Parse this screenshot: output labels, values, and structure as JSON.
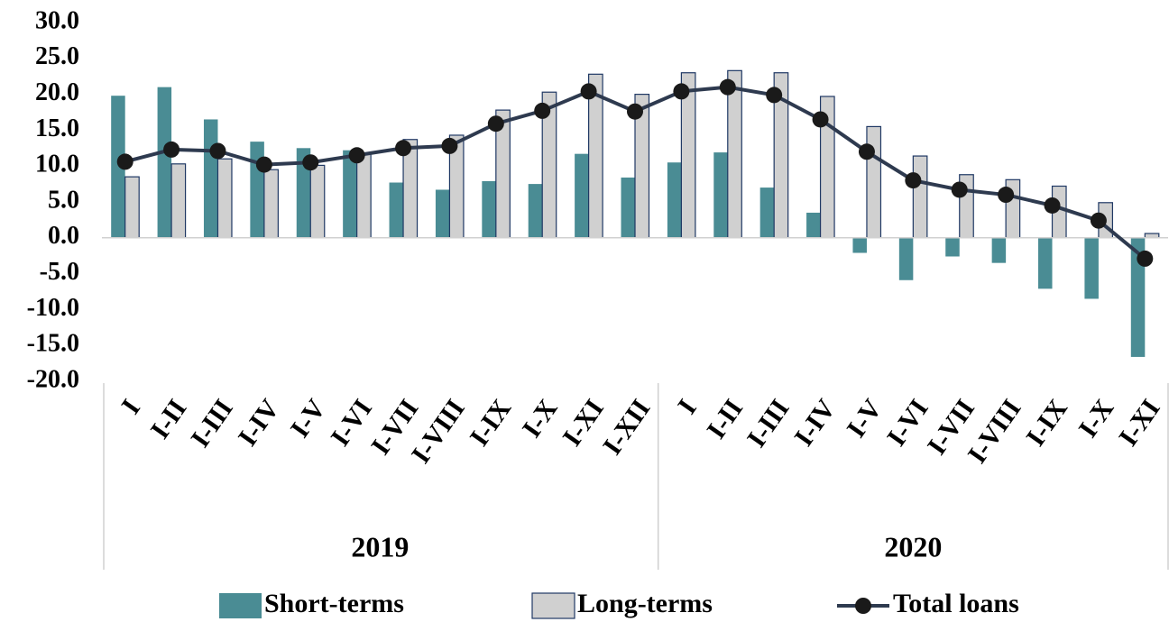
{
  "chart_data": {
    "type": "bar_line",
    "groups": [
      {
        "label": "2019",
        "categories": [
          "I",
          "I-II",
          "I-III",
          "I-IV",
          "I-V",
          "I-VI",
          "I-VII",
          "I-VIII",
          "I-IX",
          "I-X",
          "I-XI",
          "I-XII"
        ]
      },
      {
        "label": "2020",
        "categories": [
          "I",
          "I-II",
          "I-III",
          "I-IV",
          "I-V",
          "I-VI",
          "I-VII",
          "I-VIII",
          "I-IX",
          "I-X",
          "I-XI"
        ]
      }
    ],
    "series": [
      {
        "name": "Short-terms",
        "type": "bar",
        "color": "#4a8c94",
        "values": [
          19.8,
          21.0,
          16.5,
          13.4,
          12.5,
          12.2,
          7.7,
          6.7,
          7.9,
          7.5,
          11.7,
          8.4,
          10.5,
          11.9,
          7.0,
          3.5,
          -2.1,
          -5.9,
          -2.6,
          -3.5,
          -7.1,
          -8.5,
          -16.6
        ]
      },
      {
        "name": "Long-terms",
        "type": "bar",
        "color": "#d0d0d0",
        "values": [
          8.5,
          10.3,
          11.0,
          9.5,
          10.1,
          11.7,
          13.7,
          14.3,
          17.8,
          20.3,
          22.8,
          20.0,
          23.0,
          23.3,
          23.0,
          19.7,
          15.5,
          11.4,
          8.8,
          8.1,
          7.2,
          4.9,
          0.6
        ]
      },
      {
        "name": "Total loans",
        "type": "line",
        "color": "#2e3a4f",
        "values": [
          10.6,
          12.3,
          12.1,
          10.2,
          10.5,
          11.5,
          12.5,
          12.8,
          15.9,
          17.7,
          20.4,
          17.6,
          20.4,
          21.0,
          19.9,
          16.5,
          12.0,
          8.0,
          6.7,
          6.0,
          4.5,
          2.4,
          -2.9
        ]
      }
    ],
    "ylim": [
      -20,
      30
    ],
    "yticks": [
      {
        "value": -20,
        "label": "-20.0"
      },
      {
        "value": -15,
        "label": "-15.0"
      },
      {
        "value": -10,
        "label": "-10.0"
      },
      {
        "value": -5,
        "label": "-5.0"
      },
      {
        "value": 0,
        "label": "0.0"
      },
      {
        "value": 5,
        "label": "5.0"
      },
      {
        "value": 10,
        "label": "10.0"
      },
      {
        "value": 15,
        "label": "15.0"
      },
      {
        "value": 20,
        "label": "20.0"
      },
      {
        "value": 25,
        "label": "25.0"
      },
      {
        "value": 30,
        "label": "30.0"
      }
    ],
    "legend": "bottom"
  }
}
